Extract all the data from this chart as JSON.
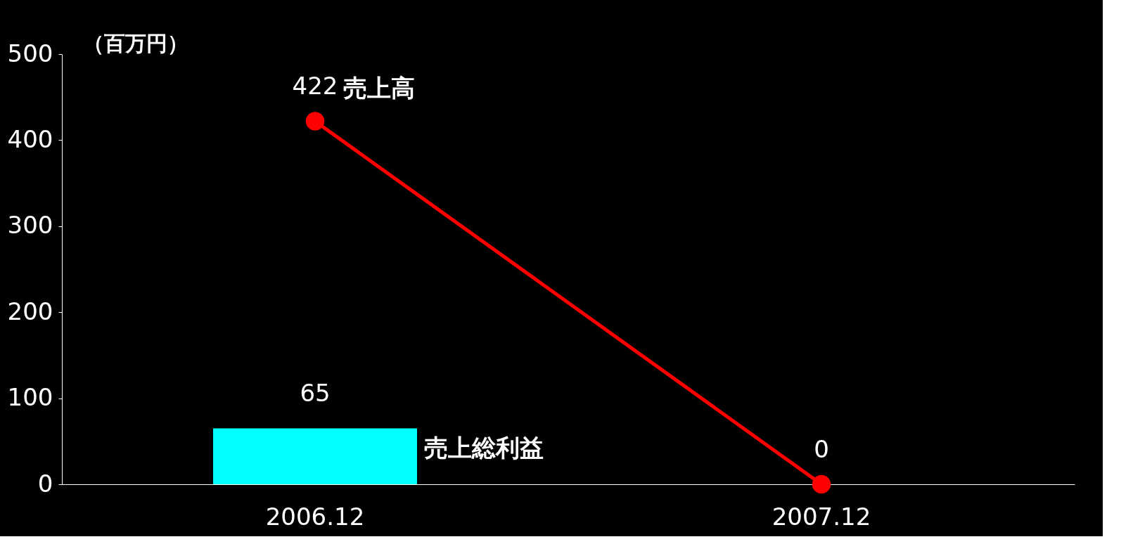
{
  "chart_data": {
    "type": "bar",
    "ylabel": "（百万円）",
    "categories": [
      "2006.12",
      "2007.12"
    ],
    "series": [
      {
        "name": "売上総利益",
        "color": "#00ffff",
        "values": [
          65,
          null
        ]
      },
      {
        "name": "売上高",
        "type": "line",
        "color": "#ff0000",
        "values": [
          422,
          0
        ]
      }
    ],
    "ylim": [
      0,
      500
    ],
    "yticks": [
      0,
      100,
      200,
      300,
      400,
      500
    ],
    "grid": false,
    "legend": false,
    "data_labels": true,
    "marker": "circle",
    "line_style": "solid"
  }
}
